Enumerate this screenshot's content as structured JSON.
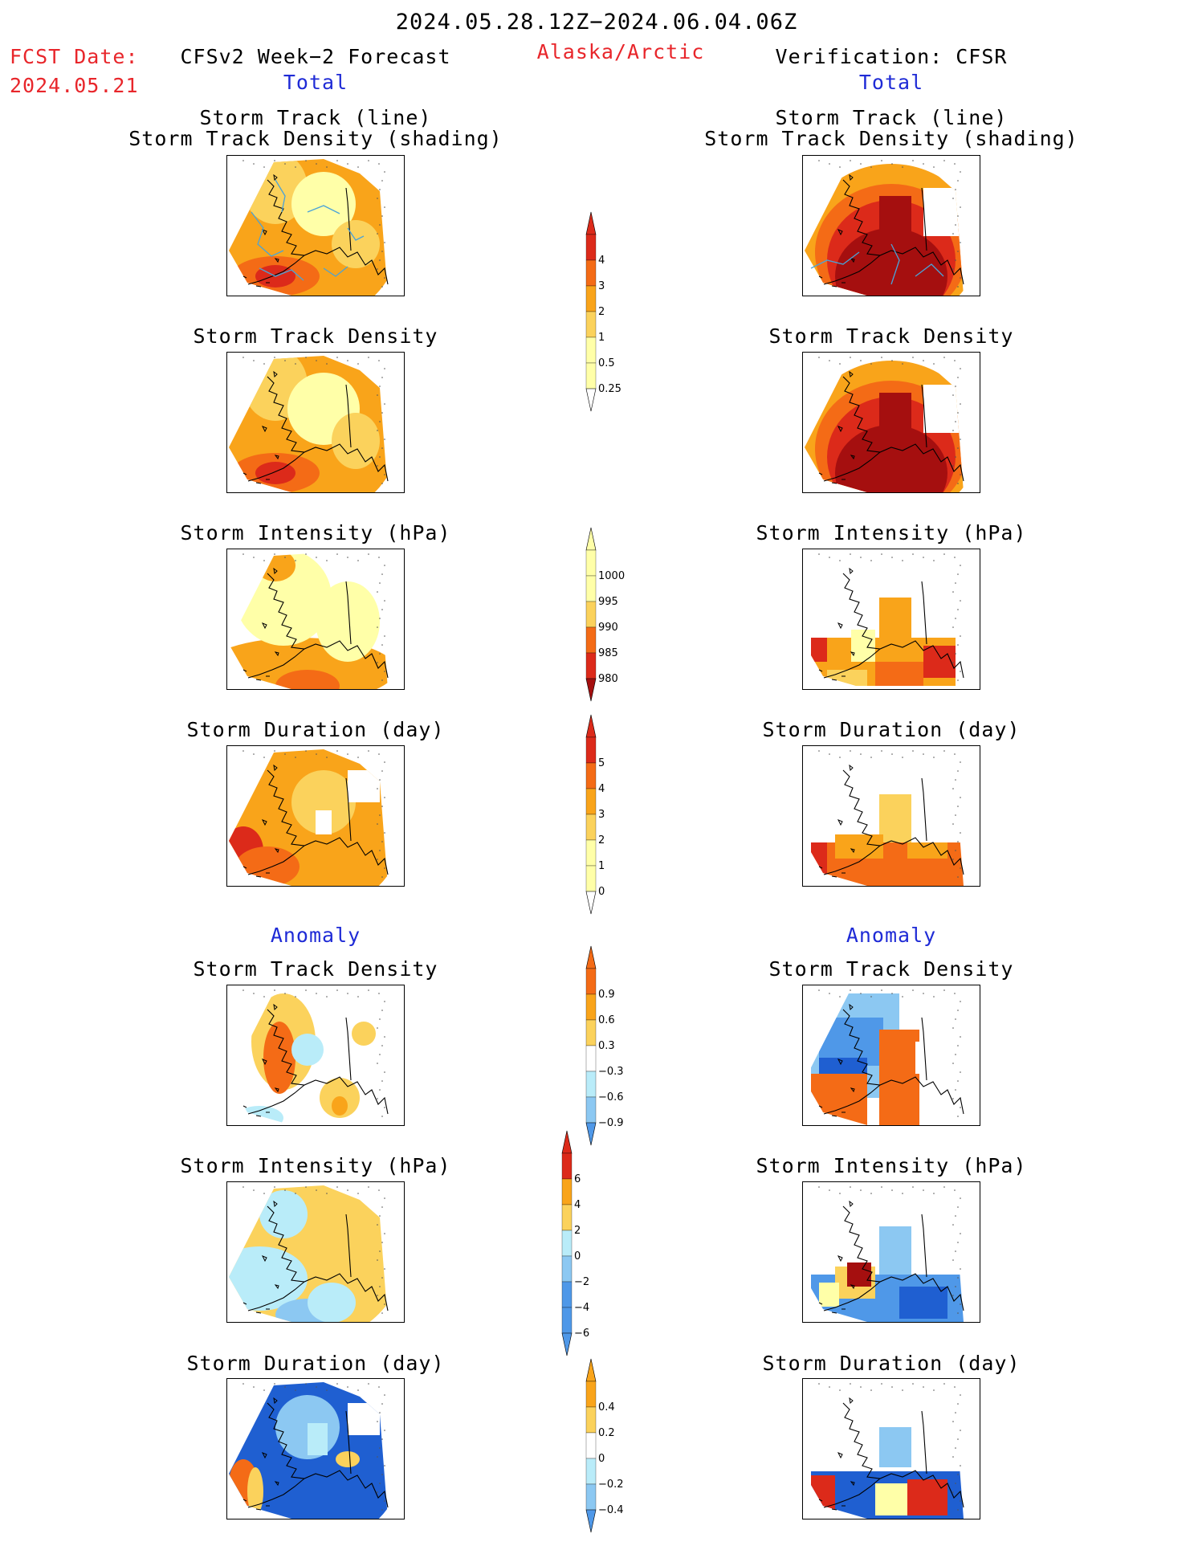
{
  "header": {
    "period": "2024.05.28.12Z−2024.06.04.06Z",
    "fcst_label": "FCST Date:",
    "fcst_date": "2024.05.21",
    "left_title": "CFSv2 Week−2 Forecast",
    "region": "Alaska/Arctic",
    "right_title": "Verification: CFSR",
    "left_total": "Total",
    "right_total": "Total",
    "left_anomaly": "Anomaly",
    "right_anomaly": "Anomaly"
  },
  "panels": {
    "track_title_1": "Storm Track (line)",
    "track_title_2": "Storm Track Density (shading)",
    "density": "Storm Track Density",
    "intensity": "Storm Intensity (hPa)",
    "duration": "Storm Duration (day)"
  },
  "colors": {
    "c1": "#ffffa8",
    "c2": "#fbd25c",
    "c3": "#f9a41a",
    "c4": "#f46b16",
    "c5": "#dc2a1a",
    "c6": "#a50f0f",
    "b1": "#b9ecf9",
    "b2": "#8cc8f2",
    "b3": "#4f98e8",
    "b4": "#1f5fd1",
    "track": "#4aa3d8",
    "land": "#ffffff"
  },
  "chart_data": [
    {
      "type": "heatmap",
      "name": "colorbar-density",
      "levels": [
        "0.25",
        "0.5",
        "1",
        "2",
        "3",
        "4"
      ]
    },
    {
      "type": "heatmap",
      "name": "colorbar-intensity",
      "levels": [
        "1000",
        "995",
        "990",
        "985",
        "980"
      ]
    },
    {
      "type": "heatmap",
      "name": "colorbar-duration",
      "levels": [
        "5",
        "4",
        "3",
        "2",
        "1",
        "0"
      ]
    },
    {
      "type": "heatmap",
      "name": "colorbar-density-anomaly",
      "levels": [
        "0.9",
        "0.6",
        "0.3",
        "−0.3",
        "−0.6",
        "−0.9"
      ]
    },
    {
      "type": "heatmap",
      "name": "colorbar-intensity-anomaly",
      "levels": [
        "6",
        "4",
        "2",
        "0",
        "−2",
        "−4",
        "−6"
      ]
    },
    {
      "type": "heatmap",
      "name": "colorbar-duration-anomaly",
      "levels": [
        "0.4",
        "0.2",
        "0",
        "−0.2",
        "−0.4"
      ]
    }
  ]
}
